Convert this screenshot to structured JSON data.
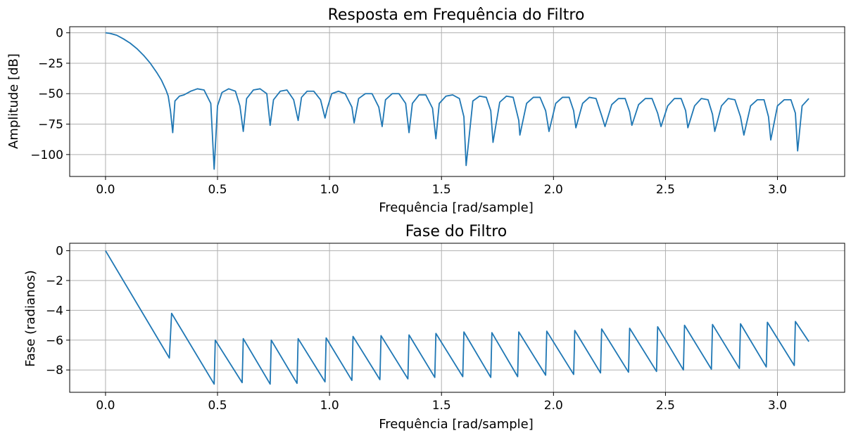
{
  "chart_data": [
    {
      "type": "line",
      "title": "Resposta em Frequência do Filtro",
      "xlabel": "Frequência [rad/sample]",
      "ylabel": "Amplitude [dB]",
      "xlim": [
        -0.16,
        3.3
      ],
      "ylim": [
        -118,
        5
      ],
      "xticks": [
        0.0,
        0.5,
        1.0,
        1.5,
        2.0,
        2.5,
        3.0
      ],
      "xtick_labels": [
        "0.0",
        "0.5",
        "1.0",
        "1.5",
        "2.0",
        "2.5",
        "3.0"
      ],
      "yticks": [
        0,
        -25,
        -50,
        -75,
        -100
      ],
      "ytick_labels": [
        "0",
        "−25",
        "−50",
        "−75",
        "−100"
      ],
      "grid": true,
      "series": [
        {
          "color": "#1f77b4",
          "x": [
            0.0,
            0.02,
            0.05,
            0.08,
            0.11,
            0.14,
            0.17,
            0.2,
            0.23,
            0.25,
            0.27,
            0.28,
            0.29,
            0.3,
            0.31,
            0.33,
            0.35,
            0.38,
            0.41,
            0.44,
            0.47,
            0.485,
            0.5,
            0.52,
            0.55,
            0.58,
            0.6,
            0.615,
            0.63,
            0.66,
            0.69,
            0.72,
            0.735,
            0.75,
            0.78,
            0.81,
            0.84,
            0.86,
            0.875,
            0.9,
            0.93,
            0.96,
            0.98,
            0.99,
            1.01,
            1.04,
            1.07,
            1.1,
            1.11,
            1.13,
            1.16,
            1.19,
            1.22,
            1.235,
            1.25,
            1.28,
            1.31,
            1.34,
            1.355,
            1.37,
            1.4,
            1.43,
            1.46,
            1.475,
            1.49,
            1.52,
            1.55,
            1.58,
            1.6,
            1.61,
            1.64,
            1.67,
            1.7,
            1.72,
            1.73,
            1.76,
            1.79,
            1.82,
            1.845,
            1.85,
            1.88,
            1.91,
            1.94,
            1.965,
            1.98,
            2.01,
            2.04,
            2.07,
            2.09,
            2.1,
            2.13,
            2.16,
            2.19,
            2.215,
            2.23,
            2.26,
            2.29,
            2.32,
            2.34,
            2.35,
            2.38,
            2.41,
            2.44,
            2.465,
            2.48,
            2.51,
            2.54,
            2.57,
            2.59,
            2.6,
            2.63,
            2.66,
            2.69,
            2.71,
            2.72,
            2.75,
            2.78,
            2.81,
            2.835,
            2.85,
            2.88,
            2.91,
            2.94,
            2.96,
            2.97,
            3.0,
            3.03,
            3.06,
            3.08,
            3.09,
            3.11,
            3.14
          ],
          "values": [
            0,
            -0.5,
            -2,
            -5,
            -8.5,
            -13,
            -18.5,
            -25,
            -33,
            -39,
            -47,
            -52,
            -64,
            -82,
            -56,
            -52,
            -51,
            -48,
            -46,
            -47,
            -58,
            -112,
            -60,
            -49,
            -46,
            -48,
            -60,
            -81,
            -54,
            -47,
            -46,
            -50,
            -76,
            -55,
            -48,
            -47,
            -55,
            -72,
            -53,
            -48,
            -48,
            -55,
            -70,
            -62,
            -50,
            -48,
            -50,
            -61,
            -74,
            -54,
            -50,
            -50,
            -61,
            -77,
            -55,
            -50,
            -50,
            -58,
            -82,
            -58,
            -51,
            -51,
            -62,
            -87,
            -58,
            -52,
            -51,
            -54,
            -69,
            -109,
            -56,
            -52,
            -53,
            -64,
            -90,
            -57,
            -52,
            -53,
            -72,
            -84,
            -58,
            -53,
            -53,
            -64,
            -81,
            -58,
            -53,
            -53,
            -64,
            -78,
            -58,
            -53,
            -54,
            -68,
            -77,
            -59,
            -54,
            -54,
            -65,
            -76,
            -59,
            -54,
            -54,
            -66,
            -77,
            -60,
            -54,
            -54,
            -64,
            -78,
            -60,
            -54,
            -55,
            -67,
            -81,
            -60,
            -54,
            -55,
            -69,
            -84,
            -60,
            -55,
            -55,
            -69,
            -88,
            -60,
            -55,
            -55,
            -66,
            -97,
            -60,
            -54
          ]
        }
      ]
    },
    {
      "type": "line",
      "title": "Fase do Filtro",
      "xlabel": "Frequência [rad/sample]",
      "ylabel": "Fase (radianos)",
      "xlim": [
        -0.16,
        3.3
      ],
      "ylim": [
        -9.5,
        0.5
      ],
      "xticks": [
        0.0,
        0.5,
        1.0,
        1.5,
        2.0,
        2.5,
        3.0
      ],
      "xtick_labels": [
        "0.0",
        "0.5",
        "1.0",
        "1.5",
        "2.0",
        "2.5",
        "3.0"
      ],
      "yticks": [
        0,
        -2,
        -4,
        -6,
        -8
      ],
      "ytick_labels": [
        "0",
        "−2",
        "−4",
        "−6",
        "−8"
      ],
      "grid": true,
      "series": [
        {
          "color": "#1f77b4",
          "x": [
            0.0,
            0.285,
            0.295,
            0.485,
            0.49,
            0.61,
            0.615,
            0.735,
            0.74,
            0.855,
            0.86,
            0.98,
            0.985,
            1.1,
            1.105,
            1.225,
            1.23,
            1.35,
            1.355,
            1.47,
            1.475,
            1.595,
            1.6,
            1.72,
            1.725,
            1.84,
            1.845,
            1.965,
            1.97,
            2.09,
            2.095,
            2.21,
            2.215,
            2.335,
            2.34,
            2.46,
            2.465,
            2.58,
            2.585,
            2.705,
            2.71,
            2.83,
            2.835,
            2.95,
            2.955,
            3.075,
            3.08,
            3.14
          ],
          "values": [
            0,
            -7.2,
            -4.2,
            -8.95,
            -6.0,
            -8.85,
            -5.9,
            -8.95,
            -6.0,
            -8.9,
            -5.9,
            -8.8,
            -5.85,
            -8.7,
            -5.75,
            -8.65,
            -5.7,
            -8.6,
            -5.65,
            -8.5,
            -5.55,
            -8.45,
            -5.45,
            -8.5,
            -5.5,
            -8.45,
            -5.45,
            -8.35,
            -5.4,
            -8.3,
            -5.35,
            -8.2,
            -5.25,
            -8.15,
            -5.2,
            -8.1,
            -5.1,
            -8.0,
            -5.0,
            -7.95,
            -4.95,
            -7.9,
            -4.9,
            -7.8,
            -4.8,
            -7.7,
            -4.75,
            -6.1
          ]
        }
      ]
    }
  ]
}
